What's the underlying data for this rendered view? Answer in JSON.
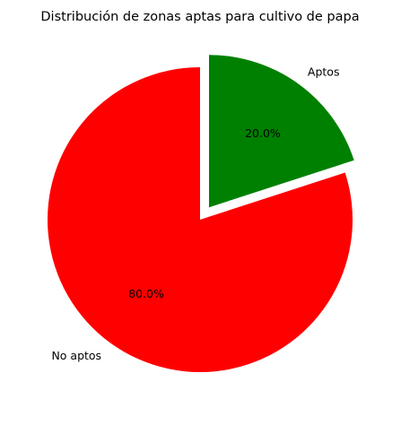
{
  "chart_data": {
    "type": "pie",
    "title": "Distribución de zonas aptas para cultivo de papa",
    "slices": [
      {
        "label": "Aptos",
        "value": 20.0,
        "pct_label": "20.0%",
        "color": "#008000",
        "exploded": true
      },
      {
        "label": "No aptos",
        "value": 80.0,
        "pct_label": "80.0%",
        "color": "#ff0000",
        "exploded": false
      }
    ],
    "start_angle_deg": 90,
    "direction": "clockwise",
    "legend": "none"
  }
}
